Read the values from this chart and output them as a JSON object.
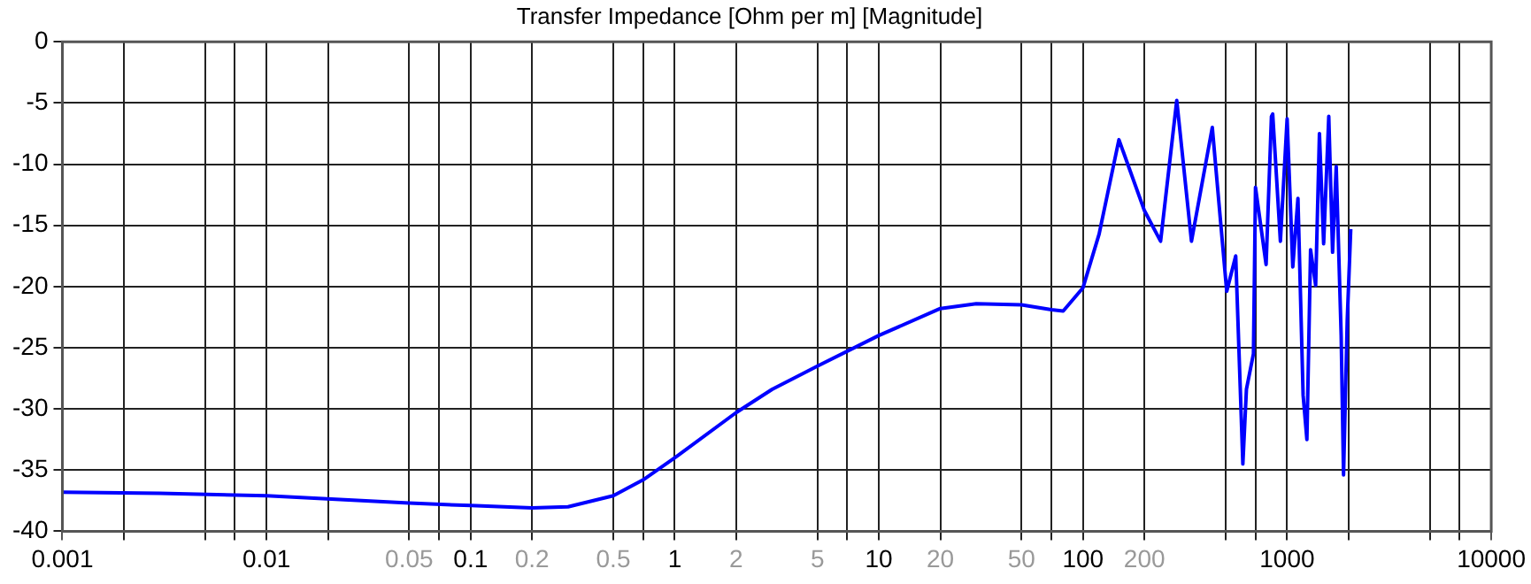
{
  "chart_data": {
    "type": "line",
    "title": "Transfer Impedance [Ohm per m] [Magnitude]",
    "series": [
      {
        "color": "#0000ff",
        "x": [
          0.001,
          0.003,
          0.01,
          0.05,
          0.1,
          0.2,
          0.3,
          0.5,
          0.7,
          1,
          2,
          3,
          5,
          10,
          20,
          30,
          50,
          70,
          80,
          100,
          120,
          150,
          200,
          240,
          288,
          340,
          430,
          506,
          560,
          607,
          632,
          684,
          700,
          789,
          838,
          850,
          927,
          1000,
          1066,
          1130,
          1198,
          1250,
          1303,
          1380,
          1440,
          1510,
          1600,
          1670,
          1740,
          1840,
          1890,
          1970,
          2050
        ],
        "values": [
          -36.8,
          -36.9,
          -37.1,
          -37.7,
          -37.9,
          -38.1,
          -38,
          -37.1,
          -35.8,
          -34,
          -30.3,
          -28.4,
          -26.5,
          -24,
          -21.8,
          -21.4,
          -21.5,
          -21.9,
          -22,
          -20.1,
          -15.7,
          -8,
          -13.8,
          -16.3,
          -4.8,
          -16.3,
          -7,
          -20.4,
          -17.5,
          -34.5,
          -28.4,
          -25.5,
          -11.9,
          -18.2,
          -6.1,
          -5.9,
          -16.3,
          -6.3,
          -18.4,
          -12.8,
          -28.9,
          -32.5,
          -17,
          -19.9,
          -7.5,
          -16.5,
          -6.1,
          -17.2,
          -10.2,
          -24,
          -35.4,
          -22.8,
          -15.3
        ]
      }
    ],
    "log": "x",
    "grid": true,
    "legend": false,
    "line_style": "solid",
    "marker": "none",
    "xlim": [
      0.001,
      10000
    ],
    "xticks": [
      0.001,
      {
        "value": 0.002,
        "label": null
      },
      {
        "value": 0.005,
        "label": null
      },
      {
        "value": 0.007,
        "label": null
      },
      0.01,
      {
        "value": 0.02,
        "label": null
      },
      0.05,
      {
        "value": 0.07,
        "label": null
      },
      0.1,
      0.2,
      0.5,
      {
        "value": 0.7,
        "label": null
      },
      1,
      2,
      5,
      {
        "value": 7,
        "label": null
      },
      10,
      20,
      50,
      {
        "value": 70,
        "label": null
      },
      100,
      200,
      {
        "value": 500,
        "label": null
      },
      {
        "value": 700,
        "label": null
      },
      1000,
      {
        "value": 2000,
        "label": null
      },
      {
        "value": 5000,
        "label": null
      },
      {
        "value": 7000,
        "label": null
      },
      10000
    ],
    "ylim": [
      -40,
      0
    ],
    "yticks": [
      -40,
      -35,
      -30,
      -25,
      -20,
      -15,
      -10,
      -5,
      0
    ]
  }
}
